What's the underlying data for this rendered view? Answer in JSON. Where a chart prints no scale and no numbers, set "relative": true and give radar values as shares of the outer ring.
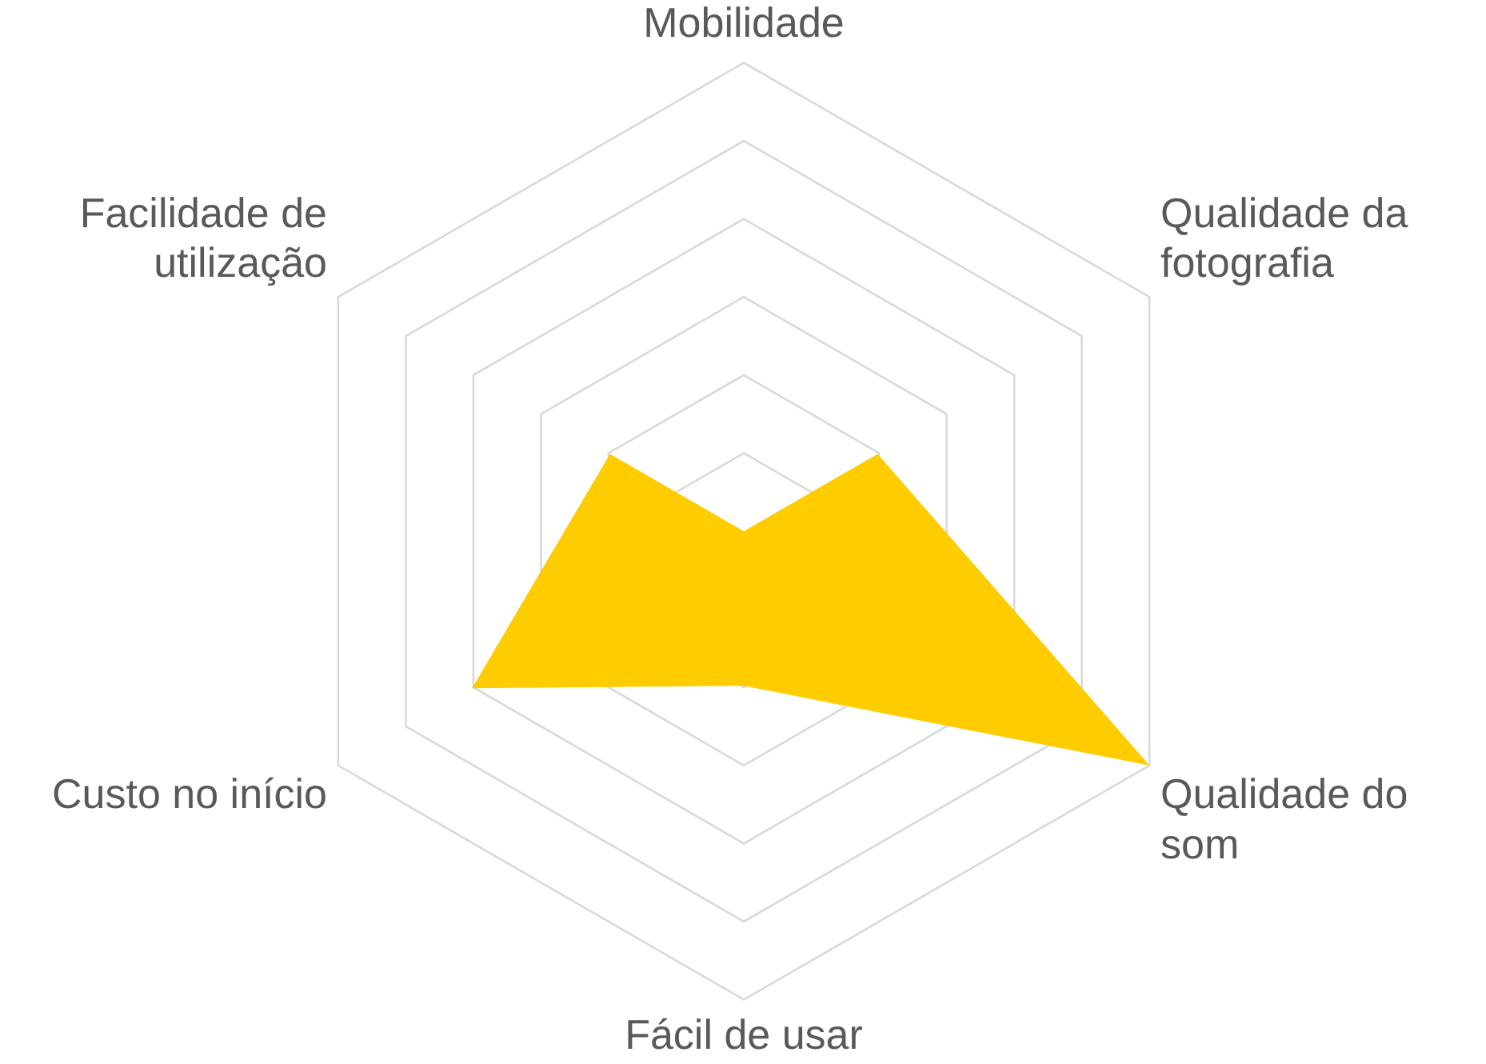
{
  "chart_data": {
    "type": "radar",
    "relative": true,
    "categories": [
      "Mobilidade",
      "Qualidade da fotografia",
      "Qualidade do som",
      "Fácil de usar",
      "Custo no início",
      "Facilidade de utilização"
    ],
    "series": [
      {
        "color": "#ffcc00",
        "values": [
          0,
          0.33,
          1,
          0.33,
          0.67,
          0.33
        ]
      }
    ],
    "grid": true,
    "legend": false,
    "marker": "none"
  }
}
